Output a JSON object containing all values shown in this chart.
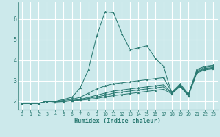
{
  "xlabel": "Humidex (Indice chaleur)",
  "ylabel": "",
  "background_color": "#cce9eb",
  "grid_color": "#ffffff",
  "line_color": "#2a7a72",
  "xlim": [
    -0.5,
    23.5
  ],
  "ylim": [
    1.6,
    6.8
  ],
  "yticks": [
    2,
    3,
    4,
    5,
    6
  ],
  "xticks": [
    0,
    1,
    2,
    3,
    4,
    5,
    6,
    7,
    8,
    9,
    10,
    11,
    12,
    13,
    14,
    15,
    16,
    17,
    18,
    19,
    20,
    21,
    22,
    23
  ],
  "x_values": [
    0,
    1,
    2,
    3,
    4,
    5,
    6,
    7,
    8,
    9,
    10,
    11,
    12,
    13,
    14,
    15,
    16,
    17,
    18,
    19,
    20,
    21,
    22,
    23
  ],
  "lines": [
    [
      1.9,
      1.9,
      1.9,
      2.0,
      2.0,
      2.1,
      2.2,
      2.65,
      3.55,
      5.2,
      6.35,
      6.3,
      5.3,
      4.5,
      4.6,
      4.7,
      4.1,
      3.7,
      2.4,
      2.8,
      2.3,
      3.55,
      3.7,
      3.75
    ],
    [
      1.9,
      1.9,
      1.9,
      2.0,
      2.0,
      2.05,
      2.1,
      2.2,
      2.4,
      2.6,
      2.75,
      2.85,
      2.9,
      2.95,
      3.0,
      3.05,
      3.1,
      3.15,
      2.45,
      2.85,
      2.35,
      3.5,
      3.65,
      3.7
    ],
    [
      1.9,
      1.9,
      1.9,
      2.0,
      1.98,
      2.0,
      2.05,
      2.1,
      2.2,
      2.3,
      2.4,
      2.5,
      2.55,
      2.6,
      2.65,
      2.7,
      2.75,
      2.8,
      2.42,
      2.78,
      2.3,
      3.45,
      3.6,
      3.65
    ],
    [
      1.9,
      1.9,
      1.9,
      2.0,
      1.97,
      1.99,
      2.04,
      2.08,
      2.15,
      2.22,
      2.3,
      2.4,
      2.45,
      2.5,
      2.55,
      2.6,
      2.65,
      2.7,
      2.4,
      2.75,
      2.28,
      3.42,
      3.57,
      3.62
    ],
    [
      1.9,
      1.9,
      1.9,
      2.0,
      1.96,
      1.98,
      2.02,
      2.06,
      2.1,
      2.15,
      2.22,
      2.28,
      2.33,
      2.38,
      2.43,
      2.48,
      2.53,
      2.58,
      2.37,
      2.72,
      2.26,
      3.38,
      3.53,
      3.58
    ]
  ]
}
